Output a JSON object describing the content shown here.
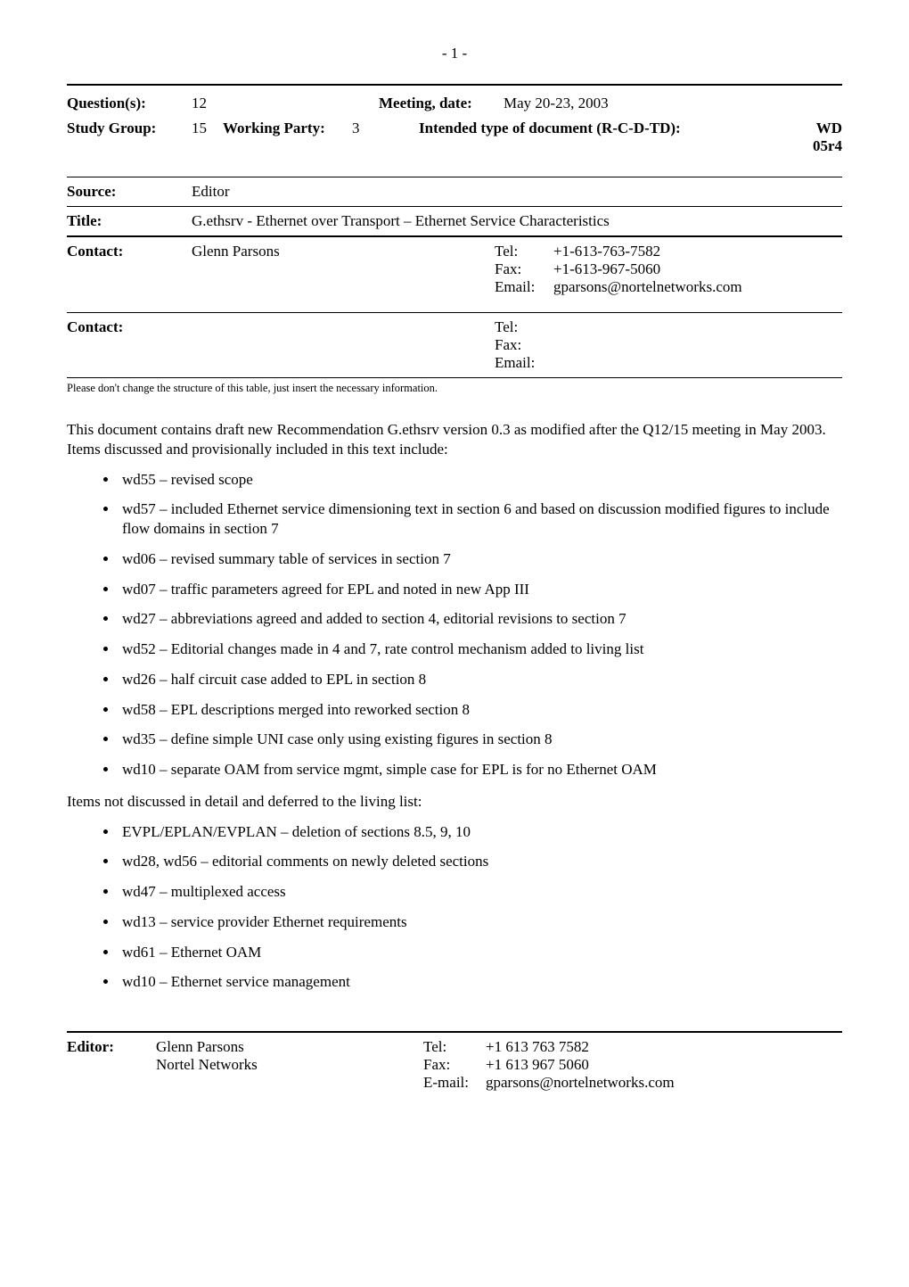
{
  "pageNumberTop": "- 1 -",
  "header": {
    "questionLabel": "Question(s):",
    "questionVal": "12",
    "meetingDateLabel": "Meeting, date:",
    "meetingDateVal": "May 20-23, 2003",
    "studyGroupLabel": "Study Group:",
    "studyGroupVal": "15",
    "workingPartyLabel": "Working Party:",
    "workingPartyVal": "3",
    "intendedTypeLabel": "Intended type of document (R-C-D-TD):",
    "wdLine1": "WD",
    "wdLine2": "05r4",
    "sourceLabel": "Source:",
    "sourceVal": "Editor",
    "titleLabel": "Title:",
    "titleVal": "G.ethsrv - Ethernet over Transport – Ethernet Service Characteristics",
    "contact1Label": "Contact:",
    "contact1Name": "Glenn Parsons",
    "contact1TelLabel": "Tel:",
    "contact1Tel": "+1-613-763-7582",
    "contact1FaxLabel": "Fax:",
    "contact1Fax": "+1-613-967-5060",
    "contact1EmailLabel": "Email:",
    "contact1Email": "gparsons@nortelnetworks.com",
    "contact2Label": "Contact:",
    "contact2TelLabel": "Tel:",
    "contact2FaxLabel": "Fax:",
    "contact2EmailLabel": "Email:"
  },
  "caption": "Please don't change the structure of this table, just insert the necessary information.",
  "intro": "This document contains draft new Recommendation G.ethsrv version 0.3 as modified after the Q12/15 meeting in May 2003. Items discussed and provisionally included in this text include:",
  "bullets1": [
    "wd55 – revised scope",
    "wd57 – included Ethernet service dimensioning text in section 6 and based on discussion modified figures to include flow domains in section 7",
    "wd06 – revised summary table of services in section 7",
    "wd07 – traffic parameters agreed for EPL and noted in new App III",
    "wd27 – abbreviations agreed and added to section 4, editorial revisions to section 7",
    "wd52 – Editorial changes made in 4 and 7, rate control mechanism added to living list",
    "wd26 – half circuit case added to EPL in section 8",
    "wd58 – EPL descriptions merged into reworked section 8",
    "wd35 – define simple UNI case only using existing figures in section 8",
    "wd10 – separate OAM from service mgmt, simple case for EPL is for no Ethernet OAM"
  ],
  "mid": "Items not discussed in detail and deferred to the living list:",
  "bullets2": [
    "EVPL/EPLAN/EVPLAN – deletion of sections 8.5, 9, 10",
    "wd28, wd56 – editorial comments on newly deleted sections",
    "wd47 – multiplexed access",
    "wd13 – service provider Ethernet requirements",
    "wd61 – Ethernet OAM",
    "wd10 – Ethernet service management"
  ],
  "footer": {
    "editorLabel": "Editor:",
    "editorName": "Glenn Parsons",
    "editorOrg": "Nortel Networks",
    "telLabel": "Tel:",
    "tel": "+1 613 763 7582",
    "faxLabel": "Fax:",
    "fax": "+1 613 967 5060",
    "emailLabel": "E-mail:",
    "email": "gparsons@nortelnetworks.com"
  }
}
